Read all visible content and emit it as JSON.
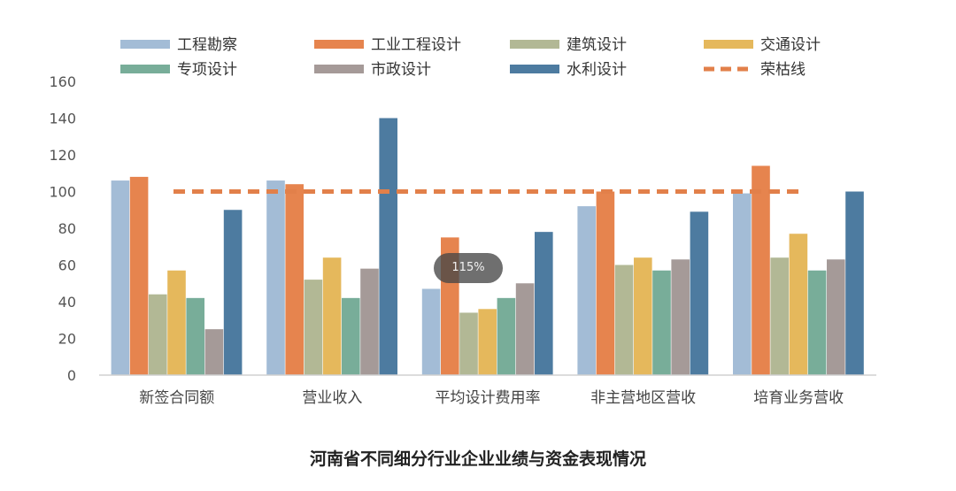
{
  "caption": "河南省不同细分行业企业业绩与资金表现情况",
  "zoom_badge": "115%",
  "chart_data": {
    "type": "bar",
    "categories": [
      "新签合同额",
      "营业收入",
      "平均设计费用率",
      "非主营地区营收",
      "培育业务营收"
    ],
    "series": [
      {
        "name": "工程勘察",
        "color": "#a3bcd6",
        "values": [
          106,
          106,
          47,
          92,
          99
        ]
      },
      {
        "name": "工业工程设计",
        "color": "#e6844e",
        "values": [
          108,
          104,
          75,
          100,
          114
        ]
      },
      {
        "name": "建筑设计",
        "color": "#b2b895",
        "values": [
          44,
          52,
          34,
          60,
          64
        ]
      },
      {
        "name": "交通设计",
        "color": "#e5b85c",
        "values": [
          57,
          64,
          36,
          64,
          77
        ]
      },
      {
        "name": "专项设计",
        "color": "#78ad99",
        "values": [
          42,
          42,
          42,
          57,
          57
        ]
      },
      {
        "name": "市政设计",
        "color": "#a59a98",
        "values": [
          25,
          58,
          50,
          63,
          63
        ]
      },
      {
        "name": "水利设计",
        "color": "#4d7ba0",
        "values": [
          90,
          140,
          78,
          89,
          100
        ]
      }
    ],
    "reference_line": {
      "name": "荣枯线",
      "value": 100,
      "color": "#e2804a",
      "style": "dashed"
    },
    "ylim": [
      0,
      160
    ],
    "yticks": [
      "0",
      "20",
      "40",
      "60",
      "80",
      "100",
      "120",
      "140",
      "160"
    ],
    "grid": false,
    "legend_position": "top"
  }
}
